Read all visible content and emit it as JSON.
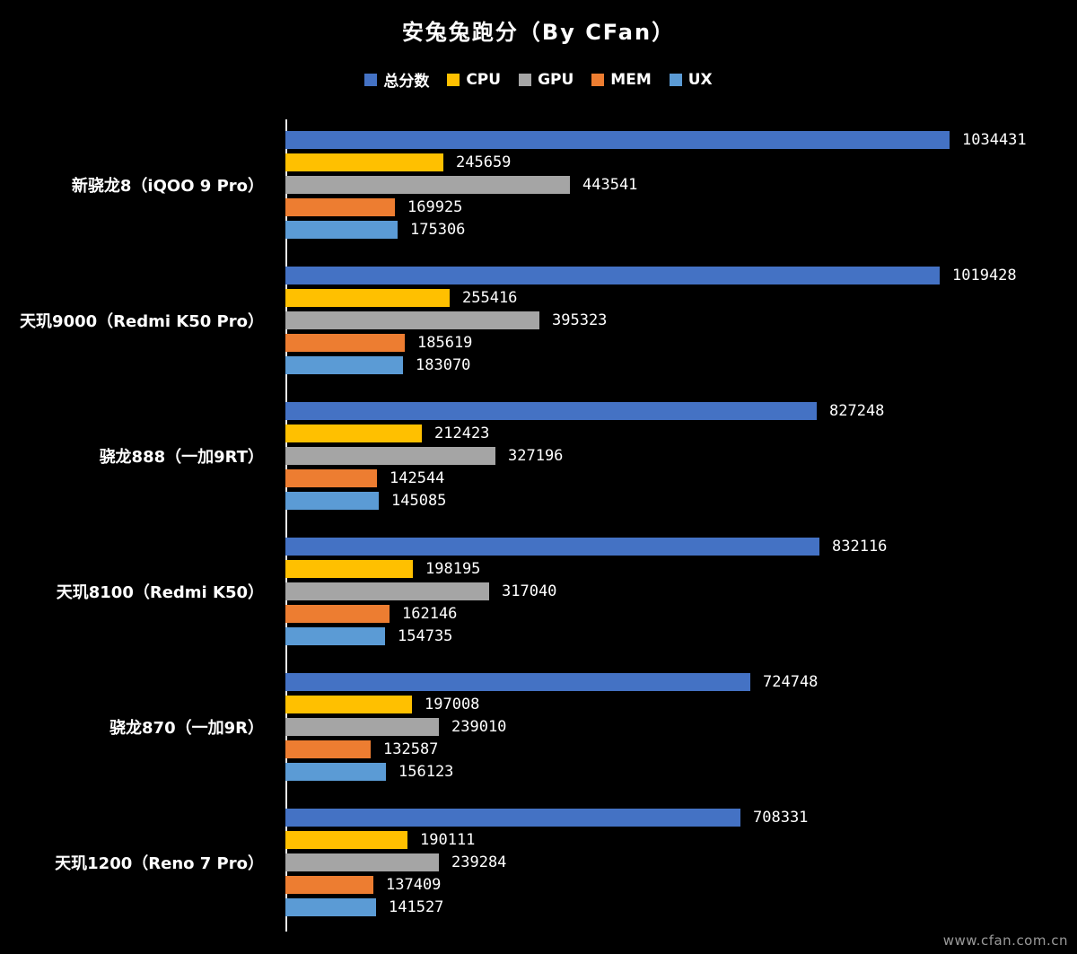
{
  "title": "安兔兔跑分（By CFan）",
  "watermark": "www.cfan.com.cn",
  "colors": {
    "background": "#000000",
    "text": "#ffffff",
    "axis": "#e8e8e8",
    "total": "#4472C4",
    "cpu": "#FFC000",
    "gpu": "#A5A5A5",
    "mem": "#ED7D31",
    "ux": "#5B9BD5"
  },
  "chart_data": {
    "type": "bar",
    "orientation": "horizontal",
    "title": "安兔兔跑分（By CFan）",
    "legend_position": "top",
    "grid": false,
    "value_labels": true,
    "xmax": 1034431,
    "categories": [
      "新骁龙8（iQOO 9 Pro）",
      "天玑9000（Redmi K50 Pro）",
      "骁龙888（一加9RT）",
      "天玑8100（Redmi K50）",
      "骁龙870（一加9R）",
      "天玑1200（Reno 7 Pro）"
    ],
    "series": [
      {
        "name": "总分数",
        "color": "#4472C4",
        "values": [
          1034431,
          1019428,
          827248,
          832116,
          724748,
          708331
        ]
      },
      {
        "name": "CPU",
        "color": "#FFC000",
        "values": [
          245659,
          255416,
          212423,
          198195,
          197008,
          190111
        ]
      },
      {
        "name": "GPU",
        "color": "#A5A5A5",
        "values": [
          443541,
          395323,
          327196,
          317040,
          239010,
          239284
        ]
      },
      {
        "name": "MEM",
        "color": "#ED7D31",
        "values": [
          169925,
          185619,
          142544,
          162146,
          132587,
          137409
        ]
      },
      {
        "name": "UX",
        "color": "#5B9BD5",
        "values": [
          175306,
          183070,
          145085,
          154735,
          156123,
          141527
        ]
      }
    ]
  }
}
